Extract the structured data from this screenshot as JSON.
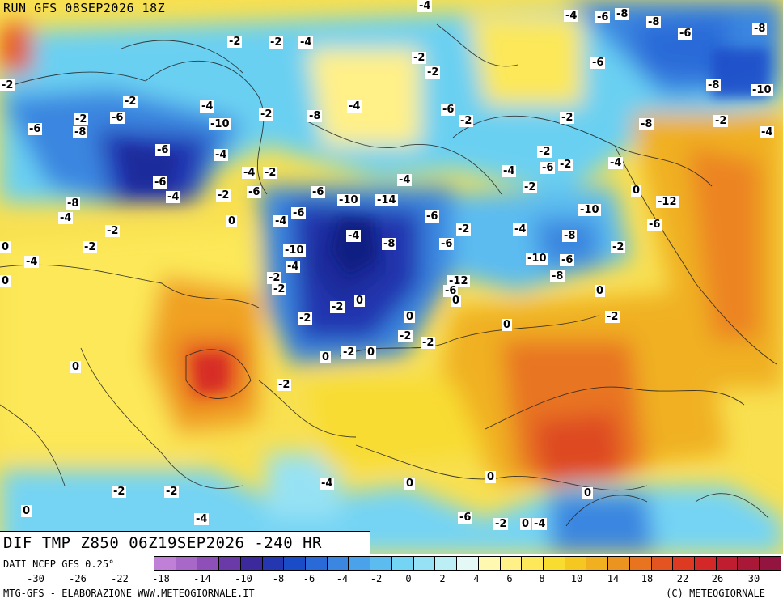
{
  "header": {
    "run": "RUN GFS 08SEP2026 18Z"
  },
  "banner": {
    "title": "DIF TMP Z850 06Z19SEP2026 -240 HR"
  },
  "footer": {
    "source": "DATI NCEP GFS 0.25°",
    "credit_left": "MTG-GFS - ELABORAZIONE WWW.METEOGIORNALE.IT",
    "credit_right": "(C) METEOGIORNALE"
  },
  "legend": {
    "colors": [
      "#c080d8",
      "#a868c8",
      "#8e4fb8",
      "#6a3aa8",
      "#3c2a9c",
      "#2436b0",
      "#1a4cc8",
      "#2a6ad8",
      "#3a86e0",
      "#4aa2ea",
      "#5cbcf0",
      "#74d4f4",
      "#96e2f4",
      "#bceef6",
      "#e4f8f6",
      "#fff8b0",
      "#fff088",
      "#fce858",
      "#f8dc30",
      "#f4c820",
      "#f0b020",
      "#ec9420",
      "#e87420",
      "#e45420",
      "#de3a22",
      "#d42828",
      "#c01e30",
      "#aa1838",
      "#941440"
    ],
    "labels": [
      "-30",
      "-26",
      "-22",
      "-18",
      "-14",
      "-10",
      "-8",
      "-6",
      "-4",
      "-2",
      "0",
      "2",
      "4",
      "6",
      "8",
      "10",
      "14",
      "18",
      "22",
      "26",
      "30"
    ]
  },
  "map_labels": [
    "-4",
    "-4",
    "-6",
    "-8",
    "-8",
    "-6",
    "-8",
    "-2",
    "-2",
    "-4",
    "-2",
    "-2",
    "-6",
    "-8",
    "-10",
    "-2",
    "-2",
    "-4",
    "-2",
    "-8",
    "-6",
    "-2",
    "-4",
    "-6",
    "-2",
    "-10",
    "-8",
    "-6",
    "-2",
    "-8",
    "-2",
    "-4",
    "-6",
    "-4",
    "-2",
    "-4",
    "-2",
    "-4",
    "-6",
    "-2",
    "-4",
    "-6",
    "-4",
    "-4",
    "-2",
    "0",
    "-6",
    "-8",
    "-4",
    "-2",
    "-6",
    "-10",
    "-12",
    "-14",
    "-10",
    "-6",
    "-4",
    "-6",
    "0",
    "-2",
    "-4",
    "-6",
    "-2",
    "-4",
    "0",
    "-8",
    "-8",
    "-6",
    "-2",
    "-2",
    "-4",
    "-10",
    "-10",
    "-6",
    "-4",
    "-2",
    "-12",
    "-8",
    "0",
    "-6",
    "-2",
    "0",
    "0",
    "0",
    "-2",
    "0",
    "0",
    "-2",
    "-2",
    "0",
    "-2",
    "0",
    "0",
    "-2",
    "-2",
    "-2",
    "0",
    "-2",
    "-2",
    "-4",
    "-4",
    "0",
    "0",
    "0",
    "-6",
    "-2",
    "0",
    "-4"
  ]
}
